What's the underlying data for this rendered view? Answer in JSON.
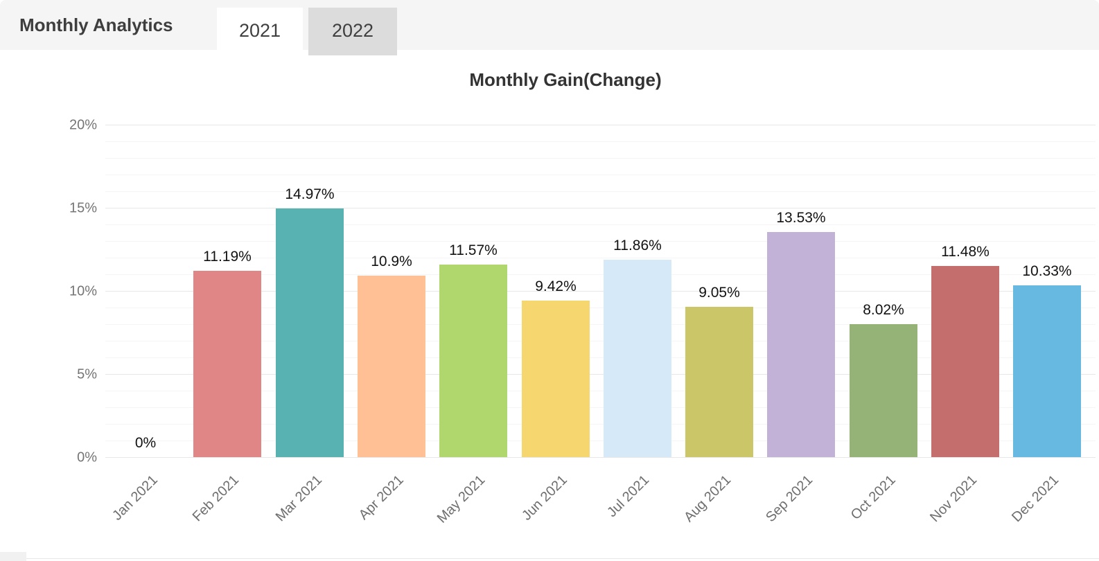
{
  "header": {
    "title": "Monthly Analytics",
    "tabs": [
      {
        "label": "2021",
        "active": true
      },
      {
        "label": "2022",
        "active": false
      }
    ]
  },
  "chart_data": {
    "type": "bar",
    "title": "Monthly Gain(Change)",
    "categories": [
      "Jan 2021",
      "Feb 2021",
      "Mar 2021",
      "Apr 2021",
      "May 2021",
      "Jun 2021",
      "Jul 2021",
      "Aug 2021",
      "Sep 2021",
      "Oct 2021",
      "Nov 2021",
      "Dec 2021"
    ],
    "values": [
      0,
      11.19,
      14.97,
      10.9,
      11.57,
      9.42,
      11.86,
      9.05,
      13.53,
      8.02,
      11.48,
      10.33
    ],
    "value_labels": [
      "0%",
      "11.19%",
      "14.97%",
      "10.9%",
      "11.57%",
      "9.42%",
      "11.86%",
      "9.05%",
      "13.53%",
      "8.02%",
      "11.48%",
      "10.33%"
    ],
    "bar_colors": [
      null,
      "#e08686",
      "#58b2b2",
      "#ffc096",
      "#b0d76d",
      "#f6d76f",
      "#d6e9f8",
      "#cbc768",
      "#c3b2d8",
      "#96b377",
      "#c56e6e",
      "#68b9e1"
    ],
    "xlabel": "",
    "ylabel": "",
    "ylim": [
      0,
      20
    ],
    "y_ticks": [
      "0%",
      "5%",
      "10%",
      "15%",
      "20%"
    ],
    "y_tick_values": [
      0,
      5,
      10,
      15,
      20
    ],
    "minor_grid_step": 1,
    "grid": true,
    "legend": "none"
  },
  "theme": {
    "header_bg": "#f5f5f6",
    "tab_active_bg": "#ffffff",
    "tab_inactive_bg": "#dcdcdc",
    "heading_text": "#3e3e3e",
    "axis_text": "#757575",
    "x_axis_text": "#6e6e6e",
    "value_label_text": "#111111",
    "grid_major": "#e7e7e7",
    "grid_minor": "#f5f5f5"
  }
}
